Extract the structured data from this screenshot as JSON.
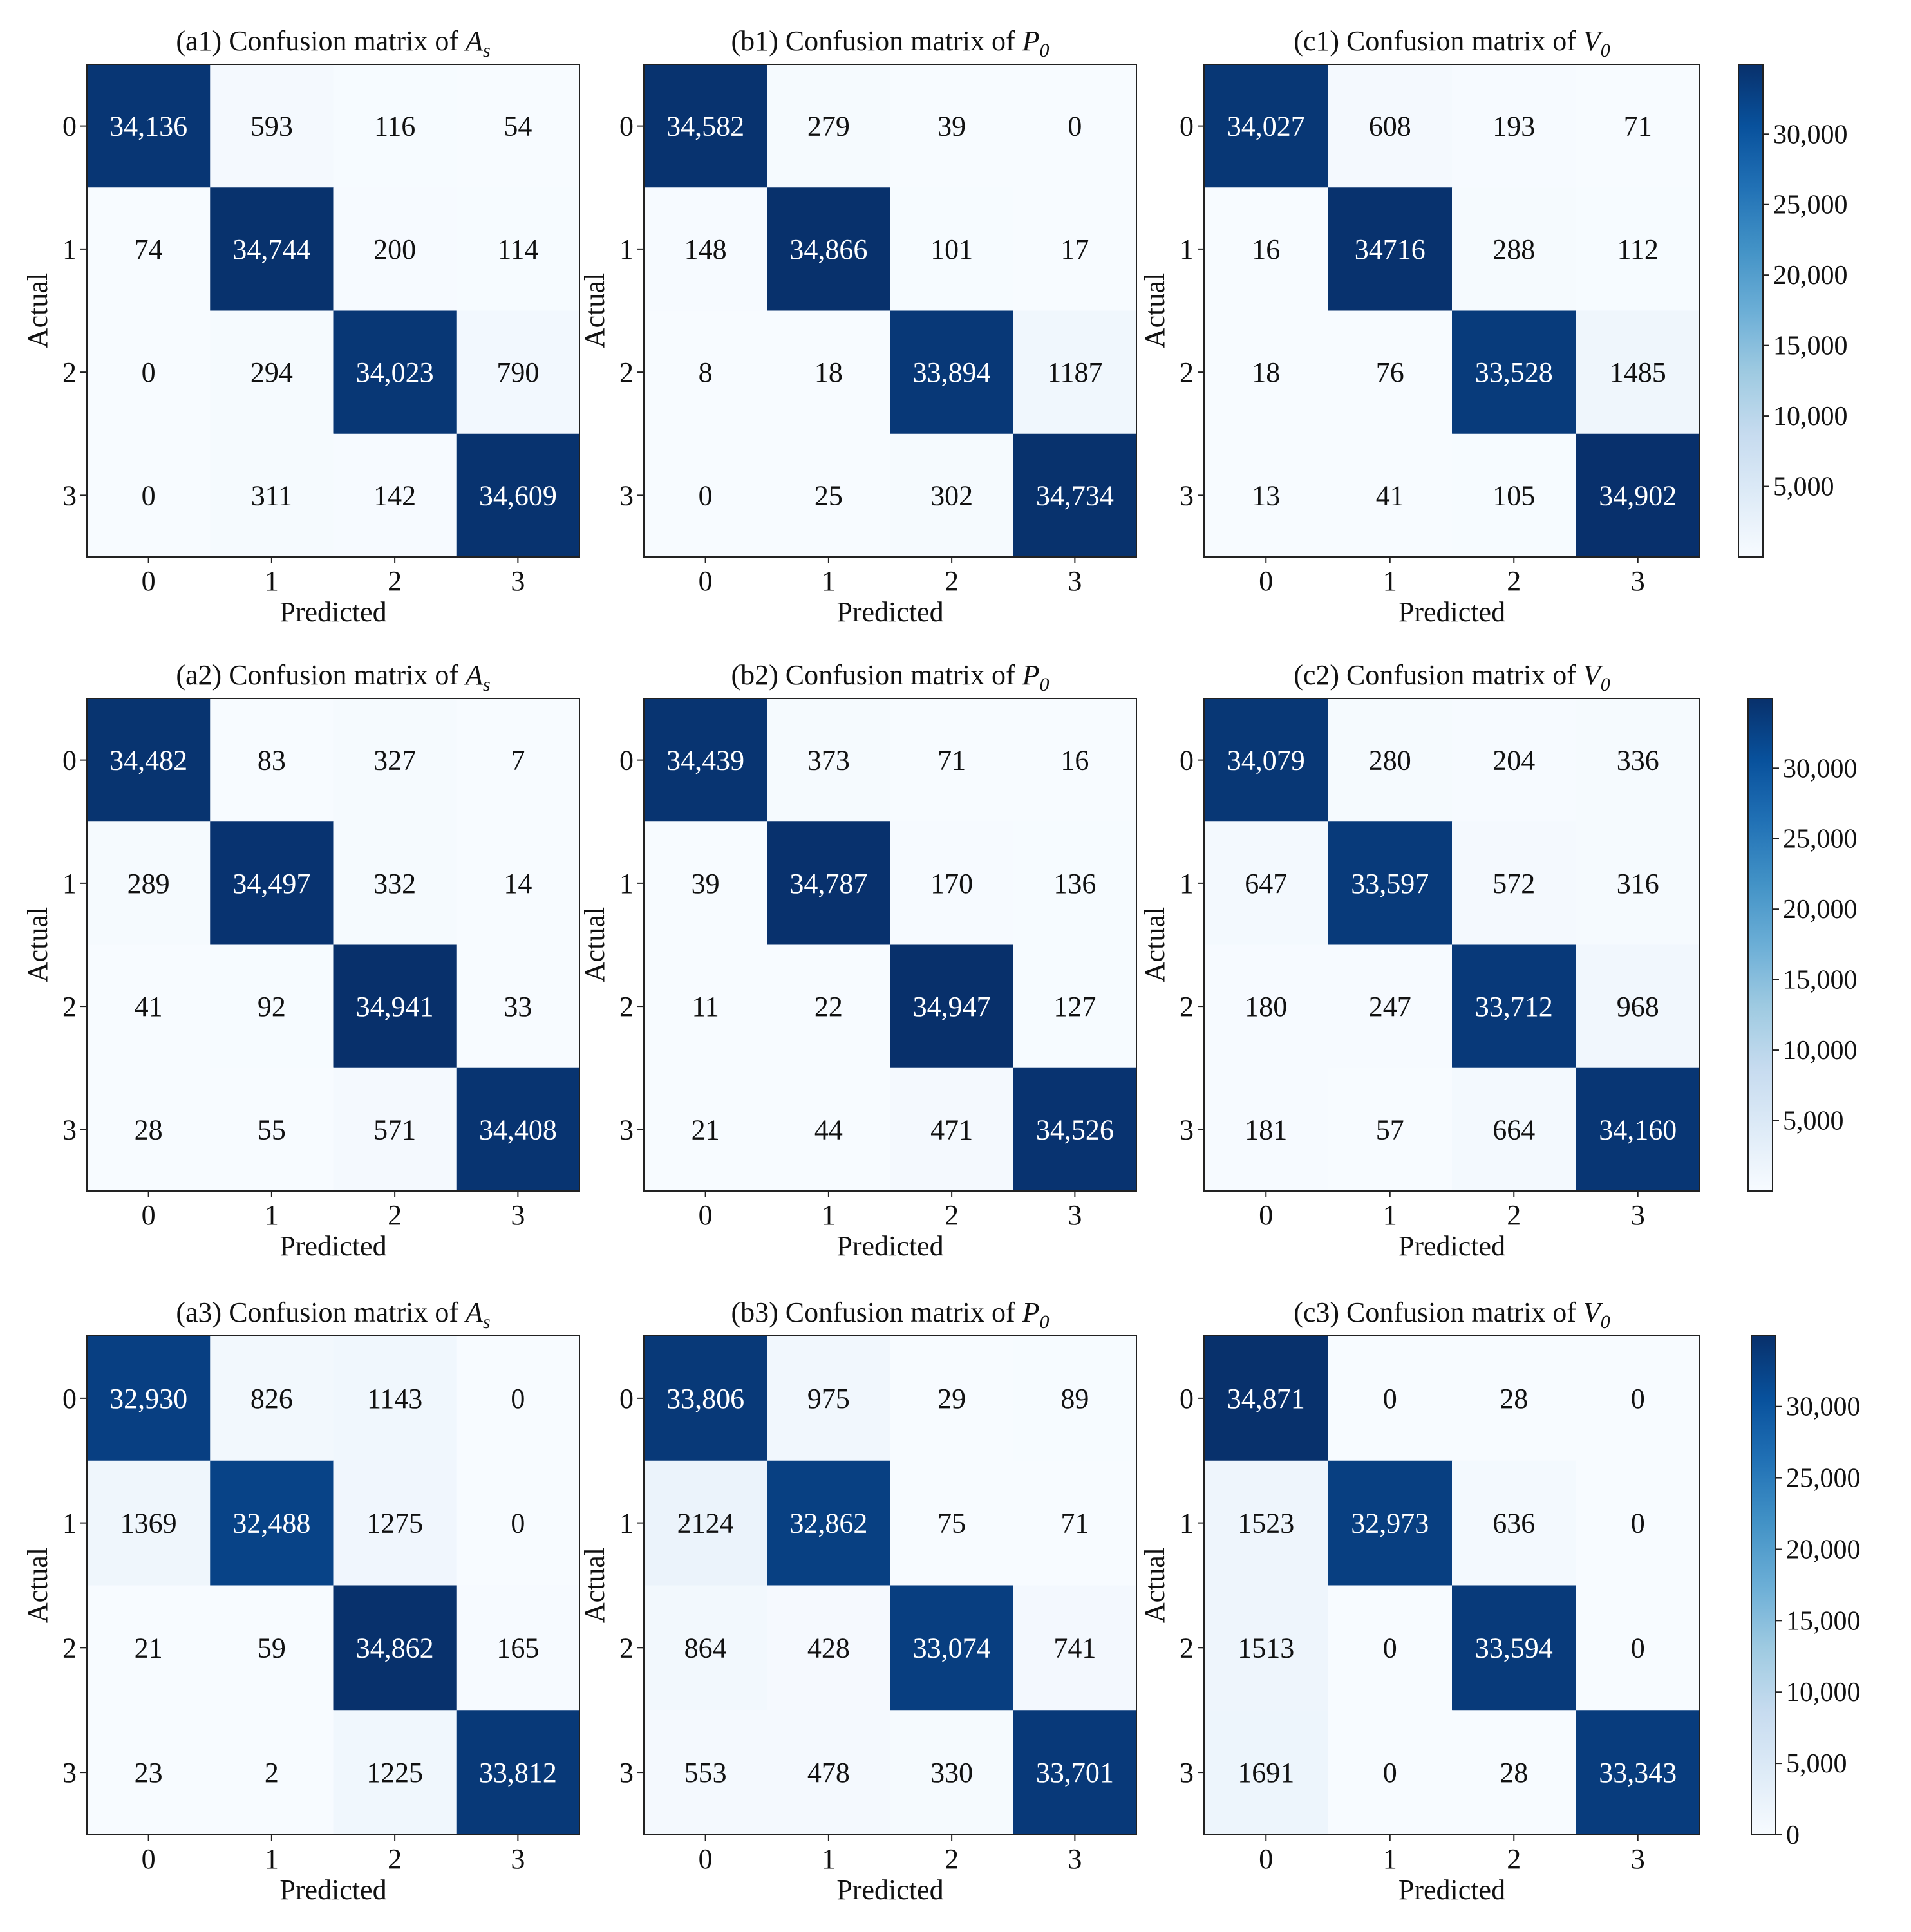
{
  "chart_data": {
    "type": "heatmap",
    "colormap": "Blues",
    "xlabel": "Predicted",
    "ylabel": "Actual",
    "x_tick_labels": [
      "0",
      "1",
      "2",
      "3"
    ],
    "y_tick_labels": [
      "0",
      "1",
      "2",
      "3"
    ],
    "colorbars": [
      {
        "ticks": [
          "30,000",
          "25,000",
          "20,000",
          "15,000",
          "10,000",
          "5,000"
        ],
        "range": [
          0,
          34947
        ]
      },
      {
        "ticks": [
          "30,000",
          "25,000",
          "20,000",
          "15,000",
          "10,000",
          "5,000"
        ],
        "range": [
          0,
          34947
        ]
      },
      {
        "ticks": [
          "30,000",
          "25,000",
          "20,000",
          "15,000",
          "10,000",
          "5,000",
          "0"
        ],
        "range": [
          0,
          34947
        ]
      }
    ],
    "matrices": [
      {
        "title_prefix": "(a1) Confusion matrix of ",
        "symbol": "A",
        "sub": "s",
        "values": [
          [
            34136,
            593,
            116,
            54
          ],
          [
            74,
            34744,
            200,
            114
          ],
          [
            0,
            294,
            34023,
            790
          ],
          [
            0,
            311,
            142,
            34609
          ]
        ],
        "labels": [
          [
            "34,136",
            "593",
            "116",
            "54"
          ],
          [
            "74",
            "34,744",
            "200",
            "114"
          ],
          [
            "0",
            "294",
            "34,023",
            "790"
          ],
          [
            "0",
            "311",
            "142",
            "34,609"
          ]
        ]
      },
      {
        "title_prefix": "(b1) Confusion matrix of ",
        "symbol": "P",
        "sub": "0",
        "values": [
          [
            34582,
            279,
            39,
            0
          ],
          [
            148,
            34866,
            101,
            17
          ],
          [
            8,
            18,
            33894,
            1187
          ],
          [
            0,
            25,
            302,
            34734
          ]
        ],
        "labels": [
          [
            "34,582",
            "279",
            "39",
            "0"
          ],
          [
            "148",
            "34,866",
            "101",
            "17"
          ],
          [
            "8",
            "18",
            "33,894",
            "1187"
          ],
          [
            "0",
            "25",
            "302",
            "34,734"
          ]
        ]
      },
      {
        "title_prefix": "(c1) Confusion matrix of ",
        "symbol": "V",
        "sub": "0",
        "values": [
          [
            34027,
            608,
            193,
            71
          ],
          [
            16,
            34716,
            288,
            112
          ],
          [
            18,
            76,
            33528,
            1485
          ],
          [
            13,
            41,
            105,
            34902
          ]
        ],
        "labels": [
          [
            "34,027",
            "608",
            "193",
            "71"
          ],
          [
            "16",
            "34716",
            "288",
            "112"
          ],
          [
            "18",
            "76",
            "33,528",
            "1485"
          ],
          [
            "13",
            "41",
            "105",
            "34,902"
          ]
        ]
      },
      {
        "title_prefix": "(a2) Confusion matrix of ",
        "symbol": "A",
        "sub": "s",
        "values": [
          [
            34482,
            83,
            327,
            7
          ],
          [
            289,
            34497,
            332,
            14
          ],
          [
            41,
            92,
            34941,
            33
          ],
          [
            28,
            55,
            571,
            34408
          ]
        ],
        "labels": [
          [
            "34,482",
            "83",
            "327",
            "7"
          ],
          [
            "289",
            "34,497",
            "332",
            "14"
          ],
          [
            "41",
            "92",
            "34,941",
            "33"
          ],
          [
            "28",
            "55",
            "571",
            "34,408"
          ]
        ]
      },
      {
        "title_prefix": "(b2) Confusion matrix of ",
        "symbol": "P",
        "sub": "0",
        "values": [
          [
            34439,
            373,
            71,
            16
          ],
          [
            39,
            34787,
            170,
            136
          ],
          [
            11,
            22,
            34947,
            127
          ],
          [
            21,
            44,
            471,
            34526
          ]
        ],
        "labels": [
          [
            "34,439",
            "373",
            "71",
            "16"
          ],
          [
            "39",
            "34,787",
            "170",
            "136"
          ],
          [
            "11",
            "22",
            "34,947",
            "127"
          ],
          [
            "21",
            "44",
            "471",
            "34,526"
          ]
        ]
      },
      {
        "title_prefix": "(c2) Confusion matrix of ",
        "symbol": "V",
        "sub": "0",
        "values": [
          [
            34079,
            280,
            204,
            336
          ],
          [
            647,
            33597,
            572,
            316
          ],
          [
            180,
            247,
            33712,
            968
          ],
          [
            181,
            57,
            664,
            34160
          ]
        ],
        "labels": [
          [
            "34,079",
            "280",
            "204",
            "336"
          ],
          [
            "647",
            "33,597",
            "572",
            "316"
          ],
          [
            "180",
            "247",
            "33,712",
            "968"
          ],
          [
            "181",
            "57",
            "664",
            "34,160"
          ]
        ]
      },
      {
        "title_prefix": "(a3) Confusion matrix of ",
        "symbol": "A",
        "sub": "s",
        "values": [
          [
            32930,
            826,
            1143,
            0
          ],
          [
            1369,
            32488,
            1275,
            0
          ],
          [
            21,
            59,
            34862,
            165
          ],
          [
            23,
            2,
            1225,
            33812
          ]
        ],
        "labels": [
          [
            "32,930",
            "826",
            "1143",
            "0"
          ],
          [
            "1369",
            "32,488",
            "1275",
            "0"
          ],
          [
            "21",
            "59",
            "34,862",
            "165"
          ],
          [
            "23",
            "2",
            "1225",
            "33,812"
          ]
        ]
      },
      {
        "title_prefix": "(b3) Confusion matrix of ",
        "symbol": "P",
        "sub": "0",
        "values": [
          [
            33806,
            975,
            29,
            89
          ],
          [
            2124,
            32862,
            75,
            71
          ],
          [
            864,
            428,
            33074,
            741
          ],
          [
            553,
            478,
            330,
            33701
          ]
        ],
        "labels": [
          [
            "33,806",
            "975",
            "29",
            "89"
          ],
          [
            "2124",
            "32,862",
            "75",
            "71"
          ],
          [
            "864",
            "428",
            "33,074",
            "741"
          ],
          [
            "553",
            "478",
            "330",
            "33,701"
          ]
        ]
      },
      {
        "title_prefix": "(c3) Confusion matrix of ",
        "symbol": "V",
        "sub": "0",
        "values": [
          [
            34871,
            0,
            28,
            0
          ],
          [
            1523,
            32973,
            636,
            0
          ],
          [
            1513,
            0,
            33594,
            0
          ],
          [
            1691,
            0,
            28,
            33343
          ]
        ],
        "labels": [
          [
            "34,871",
            "0",
            "28",
            "0"
          ],
          [
            "1523",
            "32,973",
            "636",
            "0"
          ],
          [
            "1513",
            "0",
            "33,594",
            "0"
          ],
          [
            "1691",
            "0",
            "28",
            "33,343"
          ]
        ]
      }
    ]
  }
}
